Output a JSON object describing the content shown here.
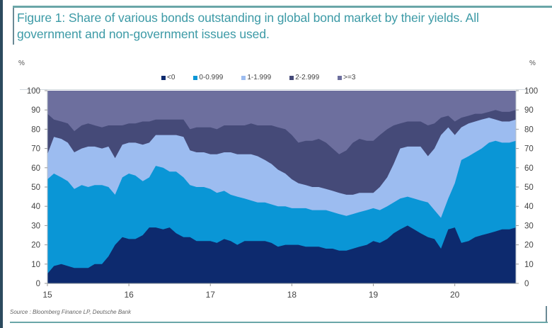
{
  "figure": {
    "title": "Figure 1: Share of various bonds outstanding in global bond market by their yields. All government and non-government issues used.",
    "source": "Source : Bloomberg Finance LP, Deutsche Bank",
    "y_unit_left": "%",
    "y_unit_right": "%"
  },
  "legend": [
    {
      "label": "<0",
      "color": "#0d2a6e"
    },
    {
      "label": "0-0.999",
      "color": "#0a96d6"
    },
    {
      "label": "1-1.999",
      "color": "#9cbcf0"
    },
    {
      "label": "2-2.999",
      "color": "#454a78"
    },
    {
      "label": ">=3",
      "color": "#6d6f9e"
    }
  ],
  "chart_data": {
    "type": "area",
    "stacked": true,
    "title": "Figure 1: Share of various bonds outstanding in global bond market by their yields. All government and non-government issues used.",
    "xlabel": "",
    "ylabel": "%",
    "ylim": [
      0,
      100
    ],
    "yticks": [
      0,
      10,
      20,
      30,
      40,
      50,
      60,
      70,
      80,
      90,
      100
    ],
    "xticks": [
      "15",
      "16",
      "17",
      "18",
      "19",
      "20"
    ],
    "xlim": [
      15.0,
      20.75
    ],
    "grid": false,
    "legend_position": "top",
    "x": [
      15.0,
      15.08,
      15.17,
      15.25,
      15.33,
      15.42,
      15.5,
      15.58,
      15.67,
      15.75,
      15.83,
      15.92,
      16.0,
      16.08,
      16.17,
      16.25,
      16.33,
      16.42,
      16.5,
      16.58,
      16.67,
      16.75,
      16.83,
      16.92,
      17.0,
      17.08,
      17.17,
      17.25,
      17.33,
      17.42,
      17.5,
      17.58,
      17.67,
      17.75,
      17.83,
      17.92,
      18.0,
      18.08,
      18.17,
      18.25,
      18.33,
      18.42,
      18.5,
      18.58,
      18.67,
      18.75,
      18.83,
      18.92,
      19.0,
      19.08,
      19.17,
      19.25,
      19.33,
      19.42,
      19.5,
      19.58,
      19.67,
      19.75,
      19.83,
      19.92,
      20.0,
      20.08,
      20.17,
      20.25,
      20.33,
      20.42,
      20.5,
      20.58,
      20.67,
      20.75
    ],
    "series": [
      {
        "name": "<0",
        "cumulative_top": [
          5,
          9,
          10,
          9,
          8,
          8,
          8,
          10,
          10,
          14,
          20,
          24,
          23,
          23,
          25,
          29,
          29,
          28,
          29,
          26,
          24,
          24,
          22,
          22,
          22,
          21,
          23,
          22,
          20,
          22,
          22,
          22,
          22,
          21,
          19,
          20,
          20,
          20,
          19,
          19,
          19,
          18,
          18,
          17,
          17,
          18,
          19,
          20,
          22,
          21,
          23,
          26,
          28,
          30,
          28,
          26,
          24,
          23,
          18,
          28,
          29,
          21,
          22,
          24,
          25,
          26,
          27,
          28,
          28,
          29
        ]
      },
      {
        "name": "0-0.999",
        "cumulative_top": [
          54,
          57,
          55,
          53,
          49,
          51,
          50,
          51,
          51,
          50,
          46,
          55,
          57,
          56,
          53,
          55,
          61,
          60,
          58,
          58,
          55,
          51,
          50,
          50,
          49,
          47,
          48,
          46,
          45,
          44,
          43,
          42,
          42,
          41,
          40,
          40,
          39,
          39,
          39,
          38,
          38,
          38,
          37,
          36,
          35,
          36,
          37,
          38,
          39,
          38,
          40,
          42,
          44,
          45,
          44,
          43,
          42,
          38,
          34,
          44,
          52,
          64,
          66,
          68,
          70,
          73,
          74,
          73,
          73,
          74
        ]
      },
      {
        "name": "1-1.999",
        "cumulative_top": [
          67,
          76,
          75,
          73,
          68,
          70,
          71,
          71,
          70,
          71,
          65,
          72,
          73,
          73,
          72,
          73,
          77,
          77,
          77,
          77,
          76,
          69,
          68,
          68,
          67,
          67,
          68,
          68,
          67,
          67,
          67,
          66,
          64,
          62,
          59,
          57,
          54,
          52,
          51,
          50,
          50,
          49,
          48,
          47,
          46,
          46,
          47,
          47,
          47,
          50,
          55,
          62,
          70,
          71,
          71,
          71,
          66,
          70,
          77,
          81,
          77,
          81,
          83,
          84,
          85,
          86,
          85,
          84,
          84,
          85
        ]
      },
      {
        "name": "2-2.999",
        "cumulative_top": [
          88,
          85,
          84,
          83,
          79,
          82,
          83,
          82,
          81,
          82,
          82,
          82,
          83,
          83,
          84,
          84,
          85,
          85,
          85,
          85,
          85,
          80,
          81,
          81,
          81,
          80,
          82,
          82,
          82,
          82,
          83,
          82,
          82,
          82,
          81,
          80,
          77,
          73,
          74,
          74,
          75,
          73,
          70,
          67,
          69,
          73,
          75,
          74,
          74,
          77,
          80,
          82,
          83,
          84,
          84,
          84,
          82,
          83,
          86,
          87,
          84,
          86,
          87,
          88,
          88,
          89,
          90,
          89,
          89,
          90
        ]
      },
      {
        "name": ">=3",
        "cumulative_top": [
          100,
          100,
          100,
          100,
          100,
          100,
          100,
          100,
          100,
          100,
          100,
          100,
          100,
          100,
          100,
          100,
          100,
          100,
          100,
          100,
          100,
          100,
          100,
          100,
          100,
          100,
          100,
          100,
          100,
          100,
          100,
          100,
          100,
          100,
          100,
          100,
          100,
          100,
          100,
          100,
          100,
          100,
          100,
          100,
          100,
          100,
          100,
          100,
          100,
          100,
          100,
          100,
          100,
          100,
          100,
          100,
          100,
          100,
          100,
          100,
          100,
          100,
          100,
          100,
          100,
          100,
          100,
          100,
          100,
          100
        ]
      }
    ]
  }
}
